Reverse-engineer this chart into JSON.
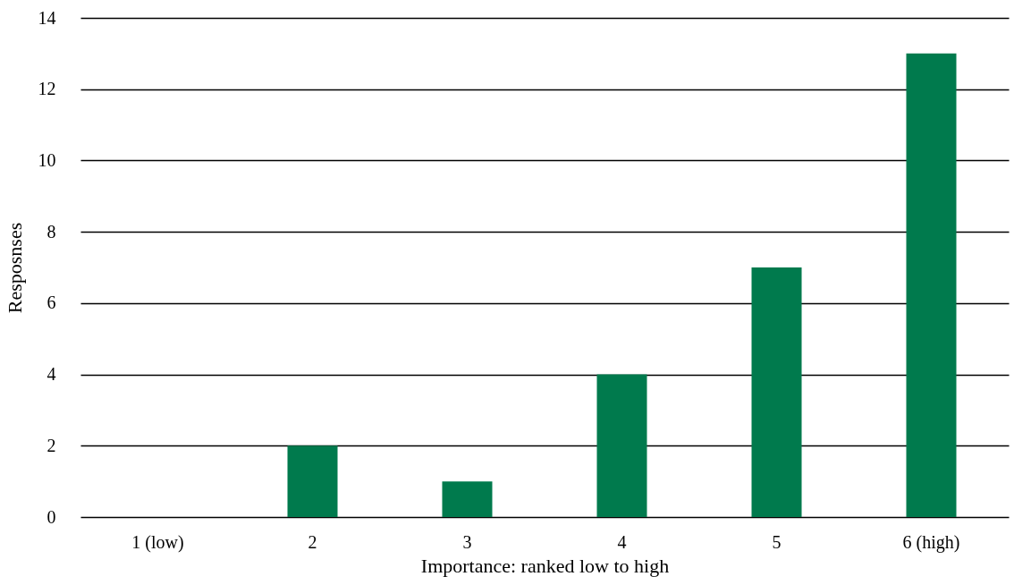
{
  "chart_data": {
    "type": "bar",
    "categories": [
      "1 (low)",
      "2",
      "3",
      "4",
      "5",
      "6 (high)"
    ],
    "values": [
      0,
      2,
      1,
      4,
      7,
      13
    ],
    "color": "#007a4d",
    "xlabel": "Importance: ranked low to high",
    "ylabel": "Resposnses",
    "ylim": [
      0,
      14
    ],
    "yticks": [
      0,
      2,
      4,
      6,
      8,
      10,
      12,
      14
    ],
    "grid": "y"
  }
}
